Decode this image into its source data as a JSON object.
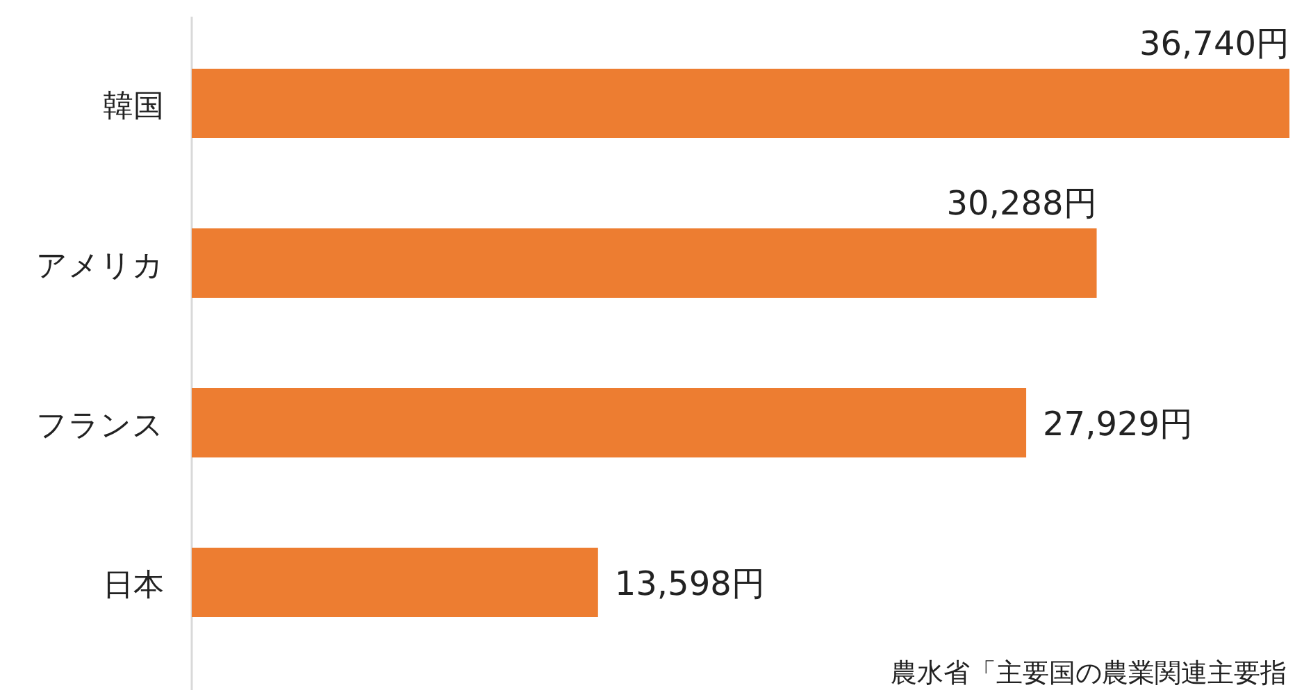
{
  "chart_data": {
    "type": "bar",
    "orientation": "horizontal",
    "categories": [
      "韓国",
      "アメリカ",
      "フランス",
      "日本"
    ],
    "values": [
      36740,
      30288,
      27929,
      13598
    ],
    "value_labels": [
      "36,740円",
      "30,288円",
      "27,929円",
      "13,598円"
    ],
    "color": "#ed7d31",
    "annotations": [
      "農水省「主要国の農業関連主要指"
    ]
  }
}
